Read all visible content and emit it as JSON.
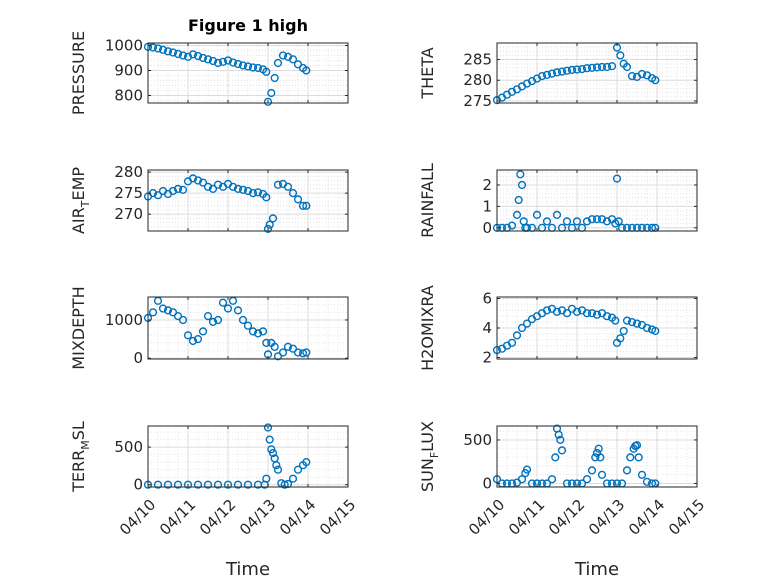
{
  "chart_data": [
    {
      "type": "scatter",
      "title": "Figure 1 high",
      "ylabel_main": "PRESSURE",
      "ylabel_sub": "",
      "xlabel": "",
      "xlim": [
        "04/10",
        "04/15"
      ],
      "ylim": [
        770,
        1010
      ],
      "yticks": [
        800,
        900,
        1000
      ],
      "xticks": [],
      "grid": "on",
      "series": [
        {
          "x": [
            "04/10 00:00",
            "04/10 03:00",
            "04/10 06:00",
            "04/10 09:00",
            "04/10 12:00",
            "04/10 15:00",
            "04/10 18:00",
            "04/10 21:00",
            "04/11 00:00",
            "04/11 03:00",
            "04/11 06:00",
            "04/11 09:00",
            "04/11 12:00",
            "04/11 15:00",
            "04/11 18:00",
            "04/11 21:00",
            "04/12 00:00",
            "04/12 03:00",
            "04/12 06:00",
            "04/12 09:00",
            "04/12 12:00",
            "04/12 15:00",
            "04/12 18:00",
            "04/12 21:00",
            "04/12 23:00",
            "04/13 00:00",
            "04/13 02:00",
            "04/13 04:00",
            "04/13 06:00",
            "04/13 09:00",
            "04/13 12:00",
            "04/13 15:00",
            "04/13 18:00",
            "04/13 21:00",
            "04/13 23:00"
          ],
          "y": [
            995,
            992,
            988,
            983,
            977,
            972,
            966,
            960,
            955,
            965,
            958,
            950,
            945,
            938,
            930,
            935,
            940,
            932,
            926,
            920,
            916,
            912,
            910,
            905,
            895,
            775,
            810,
            870,
            930,
            960,
            955,
            945,
            925,
            910,
            900
          ]
        }
      ]
    },
    {
      "type": "scatter",
      "title": "",
      "ylabel_main": "THETA",
      "ylabel_sub": "",
      "xlabel": "",
      "xlim": [
        "04/10",
        "04/15"
      ],
      "ylim": [
        274.5,
        289
      ],
      "yticks": [
        275,
        280,
        285
      ],
      "xticks": [],
      "grid": "on",
      "series": [
        {
          "x": [
            "04/10 00:00",
            "04/10 03:00",
            "04/10 06:00",
            "04/10 09:00",
            "04/10 12:00",
            "04/10 15:00",
            "04/10 18:00",
            "04/10 21:00",
            "04/11 00:00",
            "04/11 03:00",
            "04/11 06:00",
            "04/11 09:00",
            "04/11 12:00",
            "04/11 15:00",
            "04/11 18:00",
            "04/11 21:00",
            "04/12 00:00",
            "04/12 03:00",
            "04/12 06:00",
            "04/12 09:00",
            "04/12 12:00",
            "04/12 15:00",
            "04/12 18:00",
            "04/12 21:00",
            "04/13 00:00",
            "04/13 02:00",
            "04/13 04:00",
            "04/13 06:00",
            "04/13 09:00",
            "04/13 12:00",
            "04/13 15:00",
            "04/13 18:00",
            "04/13 21:00",
            "04/13 23:00"
          ],
          "y": [
            275.2,
            275.8,
            276.5,
            277.2,
            277.8,
            278.5,
            279.2,
            279.8,
            280.4,
            281.0,
            281.3,
            281.6,
            281.9,
            282.1,
            282.3,
            282.5,
            282.6,
            282.7,
            282.9,
            283.0,
            283.1,
            283.2,
            283.2,
            283.4,
            287.9,
            286.0,
            284.0,
            283.2,
            281.0,
            280.8,
            281.5,
            281.2,
            280.5,
            280.0
          ]
        }
      ]
    },
    {
      "type": "scatter",
      "title": "",
      "ylabel_main": "AIR",
      "ylabel_sub": "T",
      "ylabel_tail": "EMP",
      "xlabel": "",
      "xlim": [
        "04/10",
        "04/15"
      ],
      "ylim": [
        266,
        280.5
      ],
      "yticks": [
        270,
        275,
        280
      ],
      "xticks": [],
      "grid": "on",
      "series": [
        {
          "x": [
            "04/10 00:00",
            "04/10 03:00",
            "04/10 06:00",
            "04/10 09:00",
            "04/10 12:00",
            "04/10 15:00",
            "04/10 18:00",
            "04/10 21:00",
            "04/11 00:00",
            "04/11 03:00",
            "04/11 06:00",
            "04/11 09:00",
            "04/11 12:00",
            "04/11 15:00",
            "04/11 18:00",
            "04/11 21:00",
            "04/12 00:00",
            "04/12 03:00",
            "04/12 06:00",
            "04/12 09:00",
            "04/12 12:00",
            "04/12 15:00",
            "04/12 18:00",
            "04/12 21:00",
            "04/12 23:00",
            "04/13 00:00",
            "04/13 01:00",
            "04/13 03:00",
            "04/13 06:00",
            "04/13 09:00",
            "04/13 12:00",
            "04/13 15:00",
            "04/13 18:00",
            "04/13 21:00",
            "04/13 23:00"
          ],
          "y": [
            274.2,
            275.0,
            274.5,
            275.5,
            274.8,
            275.5,
            276.0,
            275.8,
            277.8,
            278.5,
            278.0,
            277.5,
            276.5,
            276.0,
            277.0,
            276.5,
            277.2,
            276.5,
            276.0,
            275.8,
            275.5,
            275.0,
            275.2,
            274.8,
            274.0,
            266.5,
            267.5,
            269.0,
            277.0,
            277.2,
            276.5,
            275.0,
            273.5,
            272.0,
            272.0
          ]
        }
      ]
    },
    {
      "type": "scatter",
      "title": "",
      "ylabel_main": "RAINFALL",
      "ylabel_sub": "",
      "xlabel": "",
      "xlim": [
        "04/10",
        "04/15"
      ],
      "ylim": [
        -0.15,
        2.7
      ],
      "yticks": [
        0,
        1,
        2
      ],
      "xticks": [],
      "grid": "on",
      "series": [
        {
          "x": [
            "04/10 00:00",
            "04/10 03:00",
            "04/10 06:00",
            "04/10 09:00",
            "04/10 12:00",
            "04/10 13:00",
            "04/10 14:00",
            "04/10 15:00",
            "04/10 16:00",
            "04/10 17:00",
            "04/10 18:00",
            "04/10 21:00",
            "04/11 00:00",
            "04/11 03:00",
            "04/11 06:00",
            "04/11 09:00",
            "04/11 12:00",
            "04/11 15:00",
            "04/11 18:00",
            "04/11 21:00",
            "04/12 00:00",
            "04/12 03:00",
            "04/12 06:00",
            "04/12 09:00",
            "04/12 12:00",
            "04/12 15:00",
            "04/12 18:00",
            "04/12 21:00",
            "04/12 23:00",
            "04/13 00:00",
            "04/13 01:00",
            "04/13 03:00",
            "04/13 06:00",
            "04/13 09:00",
            "04/13 12:00",
            "04/13 15:00",
            "04/13 18:00",
            "04/13 21:00",
            "04/13 23:00"
          ],
          "y": [
            0,
            0,
            0,
            0.1,
            0.6,
            1.3,
            2.5,
            2.0,
            0.3,
            0,
            0,
            0,
            0.6,
            0,
            0.3,
            0,
            0.6,
            0,
            0.3,
            0,
            0.3,
            0,
            0.3,
            0.4,
            0.4,
            0.4,
            0.3,
            0.4,
            0.2,
            2.3,
            0.3,
            0,
            0,
            0,
            0,
            0,
            0,
            0,
            0
          ]
        }
      ]
    },
    {
      "type": "scatter",
      "title": "",
      "ylabel_main": "MIXDEPTH",
      "ylabel_sub": "",
      "xlabel": "",
      "xlim": [
        "04/10",
        "04/15"
      ],
      "ylim": [
        -20,
        1600
      ],
      "yticks": [
        0,
        1000
      ],
      "xticks": [],
      "grid": "on",
      "series": [
        {
          "x": [
            "04/10 00:00",
            "04/10 03:00",
            "04/10 06:00",
            "04/10 09:00",
            "04/10 12:00",
            "04/10 15:00",
            "04/10 18:00",
            "04/10 21:00",
            "04/11 00:00",
            "04/11 03:00",
            "04/11 06:00",
            "04/11 09:00",
            "04/11 12:00",
            "04/11 15:00",
            "04/11 18:00",
            "04/11 21:00",
            "04/12 00:00",
            "04/12 03:00",
            "04/12 06:00",
            "04/12 09:00",
            "04/12 12:00",
            "04/12 15:00",
            "04/12 18:00",
            "04/12 21:00",
            "04/12 23:00",
            "04/13 00:00",
            "04/13 02:00",
            "04/13 04:00",
            "04/13 06:00",
            "04/13 09:00",
            "04/13 12:00",
            "04/13 15:00",
            "04/13 18:00",
            "04/13 21:00",
            "04/13 23:00"
          ],
          "y": [
            1050,
            1200,
            1500,
            1300,
            1250,
            1200,
            1100,
            1000,
            600,
            450,
            500,
            700,
            1100,
            950,
            1000,
            1450,
            1300,
            1500,
            1250,
            1000,
            850,
            700,
            650,
            700,
            400,
            100,
            400,
            300,
            50,
            150,
            300,
            250,
            150,
            130,
            150
          ]
        }
      ]
    },
    {
      "type": "scatter",
      "title": "",
      "ylabel_main": "H2OMIXRA",
      "ylabel_sub": "",
      "xlabel": "",
      "xlim": [
        "04/10",
        "04/15"
      ],
      "ylim": [
        1.9,
        6.1
      ],
      "yticks": [
        2,
        4,
        6
      ],
      "xticks": [],
      "grid": "on",
      "series": [
        {
          "x": [
            "04/10 00:00",
            "04/10 03:00",
            "04/10 06:00",
            "04/10 09:00",
            "04/10 12:00",
            "04/10 15:00",
            "04/10 18:00",
            "04/10 21:00",
            "04/11 00:00",
            "04/11 03:00",
            "04/11 06:00",
            "04/11 09:00",
            "04/11 12:00",
            "04/11 15:00",
            "04/11 18:00",
            "04/11 21:00",
            "04/12 00:00",
            "04/12 03:00",
            "04/12 06:00",
            "04/12 09:00",
            "04/12 12:00",
            "04/12 15:00",
            "04/12 18:00",
            "04/12 21:00",
            "04/12 23:00",
            "04/13 00:00",
            "04/13 02:00",
            "04/13 04:00",
            "04/13 06:00",
            "04/13 09:00",
            "04/13 12:00",
            "04/13 15:00",
            "04/13 18:00",
            "04/13 21:00",
            "04/13 23:00"
          ],
          "y": [
            2.5,
            2.6,
            2.8,
            3.0,
            3.5,
            4.0,
            4.3,
            4.6,
            4.8,
            5.0,
            5.2,
            5.3,
            5.1,
            5.2,
            5.0,
            5.3,
            5.1,
            5.2,
            5.0,
            5.0,
            4.9,
            5.0,
            4.8,
            4.7,
            4.5,
            3.0,
            3.3,
            3.8,
            4.5,
            4.4,
            4.3,
            4.2,
            4.0,
            3.9,
            3.8
          ]
        }
      ]
    },
    {
      "type": "scatter",
      "title": "",
      "ylabel_main": "TERR",
      "ylabel_sub": "M",
      "ylabel_tail": "SL",
      "xlabel": "Time",
      "xlim": [
        "04/10",
        "04/15"
      ],
      "ylim": [
        -30,
        780
      ],
      "yticks": [
        0,
        500
      ],
      "xticks": [
        "04/10",
        "04/11",
        "04/12",
        "04/13",
        "04/14",
        "04/15"
      ],
      "grid": "on",
      "series": [
        {
          "x": [
            "04/10 00:00",
            "04/10 06:00",
            "04/10 12:00",
            "04/10 18:00",
            "04/11 00:00",
            "04/11 06:00",
            "04/11 12:00",
            "04/11 18:00",
            "04/12 00:00",
            "04/12 06:00",
            "04/12 12:00",
            "04/12 18:00",
            "04/12 22:00",
            "04/12 23:00",
            "04/13 00:00",
            "04/13 01:00",
            "04/13 02:00",
            "04/13 03:00",
            "04/13 04:00",
            "04/13 05:00",
            "04/13 06:00",
            "04/13 08:00",
            "04/13 10:00",
            "04/13 12:00",
            "04/13 15:00",
            "04/13 18:00",
            "04/13 21:00",
            "04/13 23:00"
          ],
          "y": [
            0,
            0,
            0,
            0,
            0,
            0,
            0,
            0,
            0,
            0,
            0,
            0,
            0,
            80,
            760,
            600,
            470,
            420,
            350,
            260,
            200,
            20,
            0,
            10,
            80,
            200,
            260,
            300
          ]
        }
      ]
    },
    {
      "type": "scatter",
      "title": "",
      "ylabel_main": "SUN",
      "ylabel_sub": "F",
      "ylabel_tail": "LUX",
      "xlabel": "Time",
      "xlim": [
        "04/10",
        "04/15"
      ],
      "ylim": [
        -40,
        660
      ],
      "yticks": [
        0,
        500
      ],
      "xticks": [
        "04/10",
        "04/11",
        "04/12",
        "04/13",
        "04/14",
        "04/15"
      ],
      "grid": "on",
      "series": [
        {
          "x": [
            "04/10 00:00",
            "04/10 03:00",
            "04/10 06:00",
            "04/10 09:00",
            "04/10 12:00",
            "04/10 15:00",
            "04/10 17:00",
            "04/10 18:00",
            "04/10 21:00",
            "04/11 00:00",
            "04/11 03:00",
            "04/11 06:00",
            "04/11 09:00",
            "04/11 11:00",
            "04/11 12:00",
            "04/11 13:00",
            "04/11 14:00",
            "04/11 15:00",
            "04/11 18:00",
            "04/11 21:00",
            "04/12 00:00",
            "04/12 03:00",
            "04/12 06:00",
            "04/12 09:00",
            "04/12 11:00",
            "04/12 12:00",
            "04/12 13:00",
            "04/12 14:00",
            "04/12 15:00",
            "04/12 18:00",
            "04/12 21:00",
            "04/13 00:00",
            "04/13 03:00",
            "04/13 06:00",
            "04/13 08:00",
            "04/13 10:00",
            "04/13 11:00",
            "04/13 12:00",
            "04/13 13:00",
            "04/13 15:00",
            "04/13 18:00",
            "04/13 21:00",
            "04/13 23:00"
          ],
          "y": [
            50,
            0,
            0,
            0,
            10,
            50,
            120,
            160,
            0,
            0,
            0,
            0,
            50,
            300,
            630,
            560,
            500,
            380,
            0,
            0,
            0,
            0,
            50,
            150,
            300,
            350,
            400,
            300,
            100,
            0,
            0,
            0,
            0,
            150,
            300,
            400,
            430,
            440,
            300,
            100,
            20,
            0,
            0
          ]
        }
      ]
    }
  ]
}
